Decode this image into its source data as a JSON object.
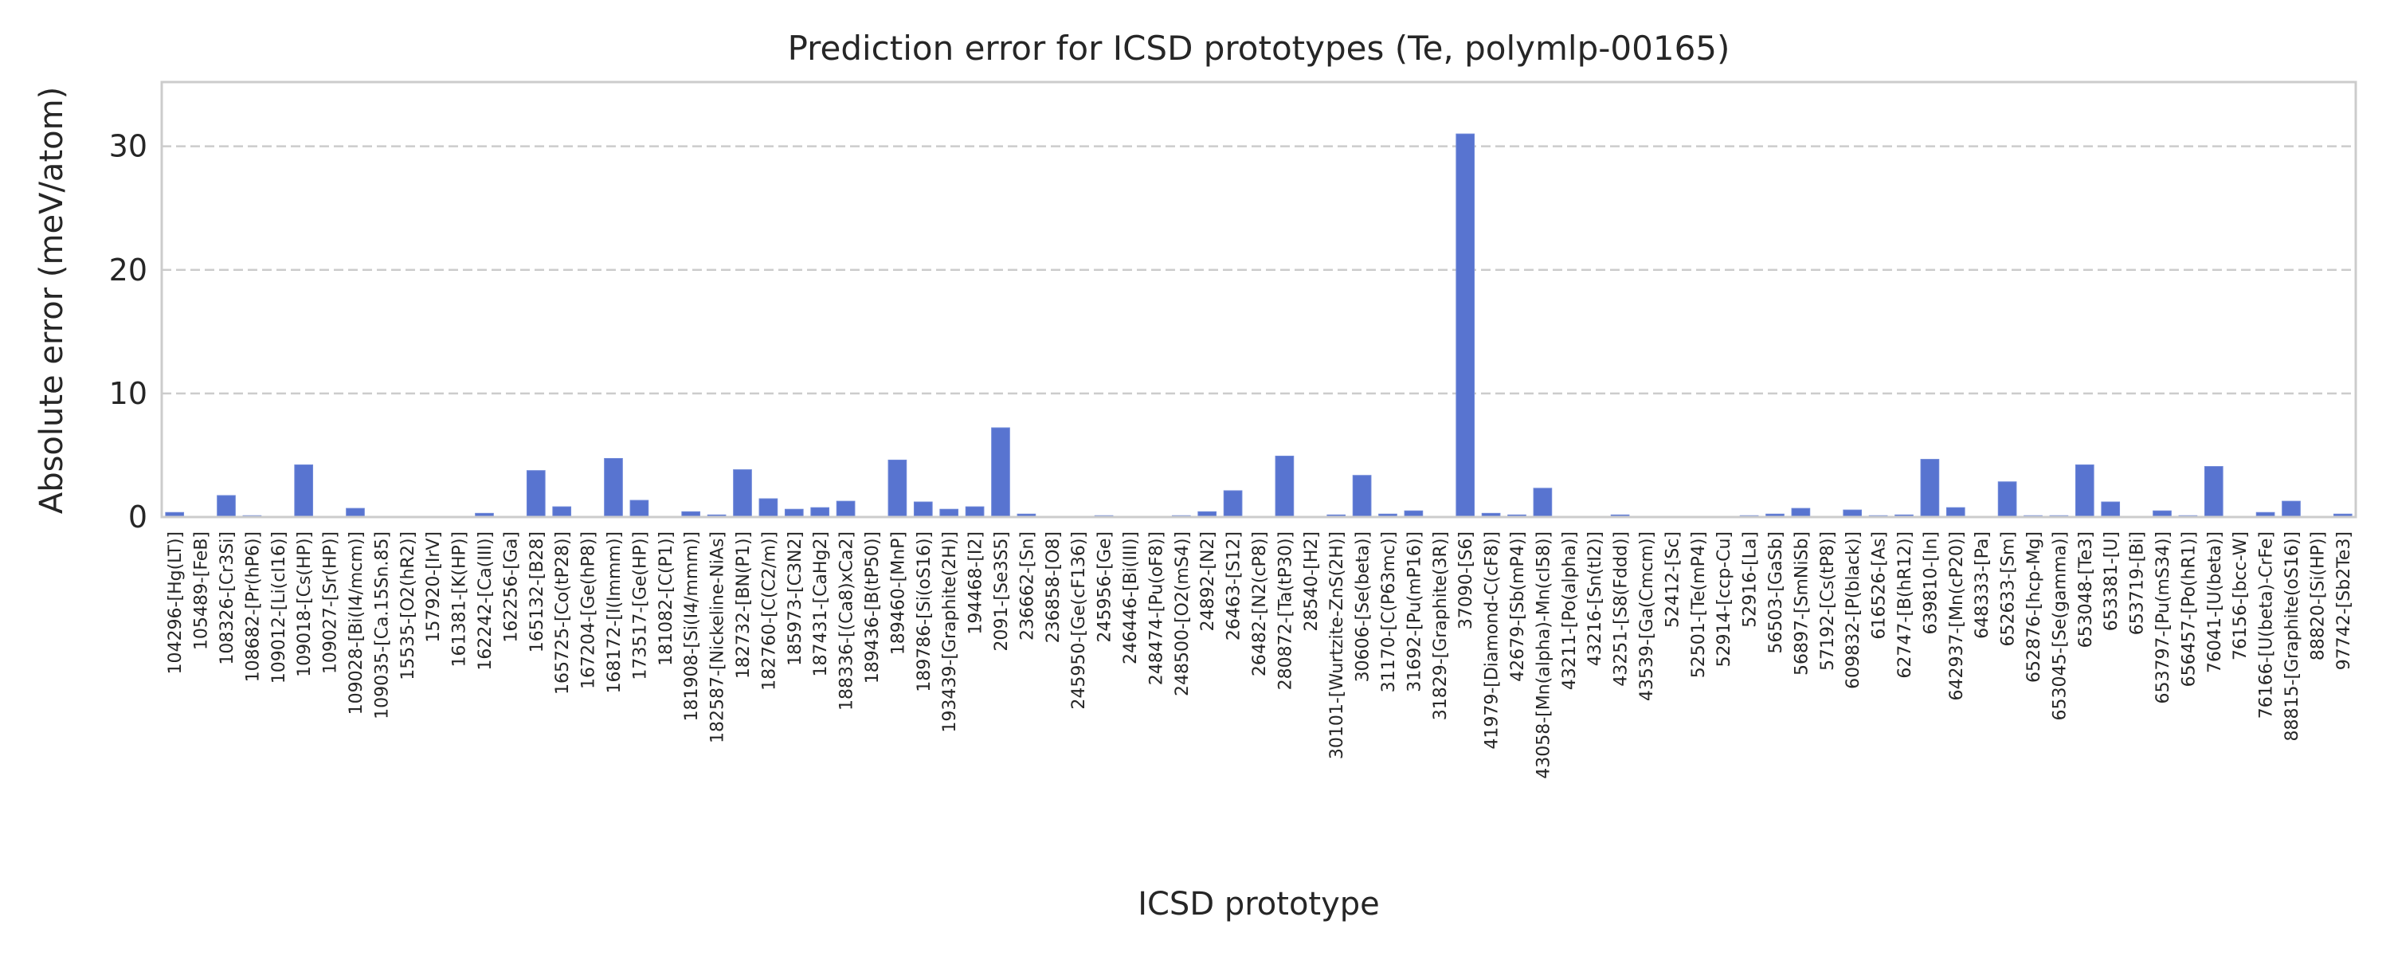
{
  "chart_data": {
    "type": "bar",
    "title": "Prediction error for ICSD prototypes (Te, polymlp-00165)",
    "xlabel": "ICSD prototype",
    "ylabel": "Absolute error (meV/atom)",
    "ylim": [
      0,
      35.2
    ],
    "yticks": [
      0,
      10,
      20,
      30
    ],
    "grid": "horizontal dashed",
    "bar_color": "#5874d0",
    "categories": [
      "104296-[Hg(LT)]",
      "105489-[FeB]",
      "108326-[Cr3Si]",
      "108682-[Pr(hP6)]",
      "109012-[Li(cI16)]",
      "109018-[Cs(HP)]",
      "109027-[Sr(HP)]",
      "109028-[Bi(I4/mcm)]",
      "109035-[Ca.15Sn.85]",
      "15535-[O2(hR2)]",
      "157920-[IrV]",
      "161381-[K(HP)]",
      "162242-[Ca(III)]",
      "162256-[Ga]",
      "165132-[B28]",
      "165725-[Co(tP28)]",
      "167204-[Ge(hP8)]",
      "168172-[I(Immm)]",
      "173517-[Ge(HP)]",
      "181082-[C(P1)]",
      "181908-[Si(I4/mmm)]",
      "182587-[Nickeline-NiAs]",
      "182732-[BN(P1)]",
      "182760-[C(C2/m)]",
      "185973-[C3N2]",
      "187431-[CaHg2]",
      "188336-[(Ca8)xCa2]",
      "189436-[B(tP50)]",
      "189460-[MnP]",
      "189786-[Si(oS16)]",
      "193439-[Graphite(2H)]",
      "194468-[I2]",
      "2091-[Se3S5]",
      "236662-[Sn]",
      "236858-[O8]",
      "245950-[Ge(cF136)]",
      "245956-[Ge]",
      "246446-[Bi(III)]",
      "248474-[Pu(oF8)]",
      "248500-[O2(mS4)]",
      "24892-[N2]",
      "26463-[S12]",
      "26482-[N2(cP8)]",
      "280872-[Ta(tP30)]",
      "28540-[H2]",
      "30101-[Wurtzite-ZnS(2H)]",
      "30606-[Se(beta)]",
      "31170-[C(P63mc)]",
      "31692-[Pu(mP16)]",
      "31829-[Graphite(3R)]",
      "37090-[S6]",
      "41979-[Diamond-C(cF8)]",
      "42679-[Sb(mP4)]",
      "43058-[Mn(alpha)-Mn(cI58)]",
      "43211-[Po(alpha)]",
      "43216-[Sn(tI2)]",
      "43251-[S8(Fddd)]",
      "43539-[Ga(Cmcm)]",
      "52412-[Sc]",
      "52501-[Te(mP4)]",
      "52914-[ccp-Cu]",
      "52916-[La]",
      "56503-[GaSb]",
      "56897-[SmNiSb]",
      "57192-[Cs(tP8)]",
      "609832-[P(black)]",
      "616526-[As]",
      "62747-[B(hR12)]",
      "639810-[In]",
      "642937-[Mn(cP20)]",
      "648333-[Pa]",
      "652633-[Sm]",
      "652876-[hcp-Mg]",
      "653045-[Se(gamma)]",
      "653048-[Te3]",
      "653381-[U]",
      "653719-[Bi]",
      "653797-[Pu(mS34)]",
      "656457-[Po(hR1)]",
      "76041-[U(beta)]",
      "76156-[bcc-W]",
      "76166-[U(beta)-CrFe]",
      "88815-[Graphite(oS16)]",
      "88820-[Si(HP)]",
      "97742-[Sb2Te3]"
    ],
    "values": [
      0.37,
      0.05,
      1.74,
      0.11,
      0.0,
      4.22,
      0.0,
      0.7,
      0.0,
      0.0,
      0.0,
      0.05,
      0.3,
      0.0,
      3.76,
      0.83,
      0.0,
      4.74,
      1.35,
      0.0,
      0.43,
      0.17,
      3.83,
      1.48,
      0.63,
      0.76,
      1.28,
      0.0,
      4.61,
      1.22,
      0.63,
      0.83,
      7.22,
      0.24,
      0.0,
      0.0,
      0.11,
      0.0,
      0.05,
      0.11,
      0.43,
      2.13,
      0.0,
      4.93,
      0.0,
      0.17,
      3.37,
      0.24,
      0.5,
      0.0,
      31.0,
      0.3,
      0.17,
      2.33,
      0.0,
      0.0,
      0.17,
      0.0,
      0.0,
      0.0,
      0.0,
      0.11,
      0.24,
      0.7,
      0.0,
      0.57,
      0.11,
      0.17,
      4.67,
      0.76,
      0.0,
      2.85,
      0.11,
      0.11,
      4.22,
      1.22,
      0.0,
      0.5,
      0.11,
      4.09,
      0.0,
      0.37,
      1.28,
      0.0,
      0.24
    ]
  }
}
